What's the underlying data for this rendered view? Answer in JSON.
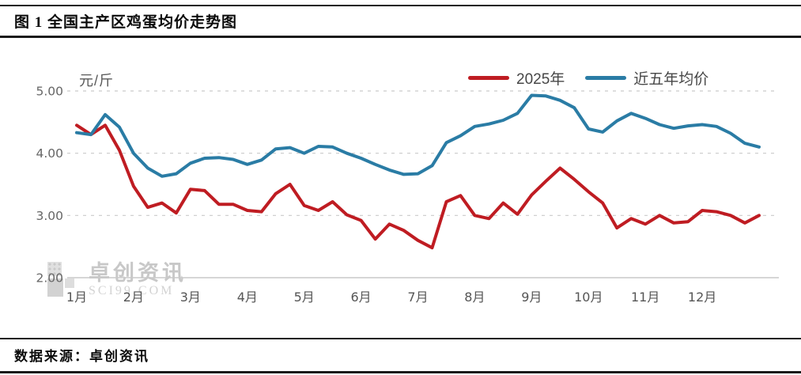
{
  "header": {
    "title": "图 1 全国主产区鸡蛋均价走势图"
  },
  "footer": {
    "source_label": "数据来源：卓创资讯"
  },
  "watermark": {
    "name": "卓创资讯",
    "site": "SCI99.COM"
  },
  "chart_data": {
    "type": "line",
    "title": "全国主产区鸡蛋均价走势图",
    "unit_label": "元/斤",
    "ylabel": "元/斤",
    "xlabel": "",
    "ylim": [
      2.0,
      5.0
    ],
    "y_ticks": [
      "5.00",
      "4.00",
      "3.00",
      "2.00"
    ],
    "x_categories": [
      "1月",
      "2月",
      "3月",
      "4月",
      "5月",
      "6月",
      "7月",
      "8月",
      "9月",
      "10月",
      "11月",
      "12月"
    ],
    "grid": "horizontal dashed",
    "legend_position": "top-right",
    "sampling": "4 points per month, Jan through Dec",
    "series": [
      {
        "name": "2025年",
        "color": "#bf1c22",
        "values": [
          4.45,
          4.3,
          4.45,
          4.05,
          3.47,
          3.13,
          3.2,
          3.04,
          3.42,
          3.4,
          3.18,
          3.18,
          3.08,
          3.06,
          3.35,
          3.5,
          3.16,
          3.08,
          3.22,
          3.01,
          2.92,
          2.62,
          2.86,
          2.76,
          2.6,
          2.48,
          3.22,
          3.32,
          3.0,
          2.95,
          3.2,
          3.02,
          3.33,
          3.55,
          3.76,
          3.58,
          3.38,
          3.2,
          2.8,
          2.95,
          2.86,
          3.0,
          2.88,
          2.9,
          3.08,
          3.06,
          3.0,
          2.88,
          3.0
        ]
      },
      {
        "name": "近五年均价",
        "color": "#2a7ca5",
        "values": [
          4.33,
          4.3,
          4.62,
          4.42,
          4.0,
          3.76,
          3.63,
          3.67,
          3.84,
          3.92,
          3.93,
          3.9,
          3.82,
          3.89,
          4.07,
          4.09,
          4.0,
          4.11,
          4.1,
          4.0,
          3.92,
          3.82,
          3.73,
          3.66,
          3.67,
          3.8,
          4.17,
          4.28,
          4.43,
          4.47,
          4.53,
          4.64,
          4.93,
          4.92,
          4.85,
          4.73,
          4.39,
          4.34,
          4.52,
          4.64,
          4.56,
          4.46,
          4.4,
          4.44,
          4.46,
          4.43,
          4.32,
          4.16,
          4.1
        ]
      }
    ]
  }
}
